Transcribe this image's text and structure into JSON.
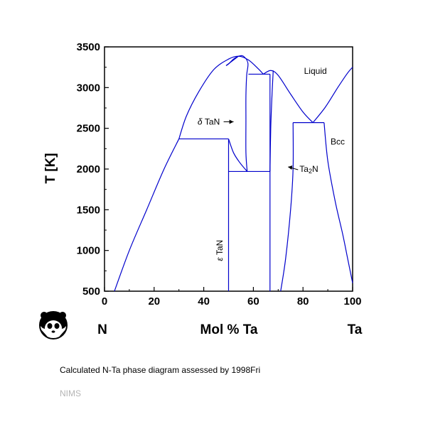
{
  "chart_data": {
    "type": "line",
    "xlabel": "Mol % Ta",
    "ylabel": "T [K]",
    "xlim": [
      0,
      100
    ],
    "ylim": [
      500,
      3500
    ],
    "x_ticks": [
      0,
      20,
      40,
      60,
      80,
      100
    ],
    "y_ticks": [
      500,
      1000,
      1500,
      2000,
      2500,
      3000,
      3500
    ],
    "x_end_labels": {
      "left": "N",
      "right": "Ta"
    },
    "grid": false,
    "line_color": "#0000cc",
    "phase_boundaries": [
      {
        "name": "liquidus-left",
        "points": [
          [
            4,
            500
          ],
          [
            10,
            1000
          ],
          [
            17,
            1500
          ],
          [
            24,
            2000
          ],
          [
            30,
            2370
          ]
        ]
      },
      {
        "name": "liquidus-delta",
        "points": [
          [
            30,
            2370
          ],
          [
            33,
            2650
          ],
          [
            38,
            2950
          ],
          [
            44,
            3220
          ],
          [
            50,
            3350
          ],
          [
            54,
            3385
          ],
          [
            58,
            3340
          ],
          [
            62,
            3230
          ],
          [
            64,
            3165
          ]
        ]
      },
      {
        "name": "liquidus-middle",
        "points": [
          [
            64,
            3165
          ],
          [
            67,
            3210
          ],
          [
            70,
            3150
          ],
          [
            75,
            2920
          ],
          [
            80,
            2700
          ],
          [
            84,
            2570
          ]
        ]
      },
      {
        "name": "liquidus-right",
        "points": [
          [
            84,
            2570
          ],
          [
            89,
            2760
          ],
          [
            94,
            3000
          ],
          [
            98,
            3180
          ],
          [
            100,
            3250
          ]
        ]
      },
      {
        "name": "eutectic-2370",
        "points": [
          [
            30,
            2370
          ],
          [
            50,
            2370
          ]
        ]
      },
      {
        "name": "delta-left-boundary",
        "points": [
          [
            50,
            2370
          ],
          [
            52,
            2200
          ],
          [
            54.5,
            2080
          ],
          [
            57.5,
            1970
          ]
        ]
      },
      {
        "name": "delta-right-boundary",
        "points": [
          [
            57.5,
            1970
          ],
          [
            57,
            2200
          ],
          [
            57,
            2600
          ],
          [
            57,
            2900
          ],
          [
            57.3,
            3150
          ],
          [
            57.8,
            3300
          ],
          [
            56,
            3385
          ],
          [
            54,
            3385
          ],
          [
            52,
            3350
          ],
          [
            50,
            3290
          ],
          [
            49,
            3270
          ]
        ]
      },
      {
        "name": "delta-top-dome",
        "points": [
          [
            49,
            3270
          ],
          [
            54,
            3385
          ]
        ]
      },
      {
        "name": "delta-epsilon-1970",
        "points": [
          [
            50,
            1970
          ],
          [
            66.7,
            1970
          ]
        ]
      },
      {
        "name": "epsilon-TaN-line",
        "points": [
          [
            50,
            500
          ],
          [
            50,
            2370
          ]
        ]
      },
      {
        "name": "Ta2N-right-line",
        "points": [
          [
            66.7,
            500
          ],
          [
            66.7,
            3165
          ]
        ]
      },
      {
        "name": "peritectic-3165",
        "points": [
          [
            58,
            3165
          ],
          [
            66.7,
            3165
          ]
        ]
      },
      {
        "name": "Ta2N-phase-boundary",
        "points": [
          [
            66.7,
            1970
          ],
          [
            67,
            2500
          ],
          [
            67.5,
            2900
          ],
          [
            68,
            3210
          ]
        ]
      },
      {
        "name": "eutectic-2570",
        "points": [
          [
            76,
            2570
          ],
          [
            88.5,
            2570
          ]
        ]
      },
      {
        "name": "Ta2N-right-solvus",
        "points": [
          [
            71,
            500
          ],
          [
            73,
            900
          ],
          [
            75,
            1500
          ],
          [
            76,
            2000
          ],
          [
            76,
            2570
          ]
        ]
      },
      {
        "name": "bcc-solvus",
        "points": [
          [
            88.5,
            2570
          ],
          [
            90,
            2100
          ],
          [
            93,
            1600
          ],
          [
            96,
            1200
          ],
          [
            98,
            900
          ],
          [
            100,
            600
          ]
        ]
      }
    ],
    "annotations": [
      {
        "text": "Liquid",
        "x": 85,
        "y": 3170
      },
      {
        "text": "Bcc",
        "x": 94,
        "y": 2300
      },
      {
        "text": "δ TaN",
        "symbol": "δ",
        "label": "TaN",
        "x": 42,
        "y": 2580
      },
      {
        "text": "Ta2N",
        "base": "Ta",
        "sub": "2",
        "suffix": "N",
        "x": 74,
        "y": 2000
      },
      {
        "text": "ε TaN",
        "symbol": "ε",
        "label": "TaN",
        "x": 47.5,
        "y": 1000
      }
    ]
  },
  "caption": "Calculated N-Ta phase diagram assessed by 1998Fri",
  "credit": "NIMS",
  "logo_icon": "panda-logo-icon"
}
